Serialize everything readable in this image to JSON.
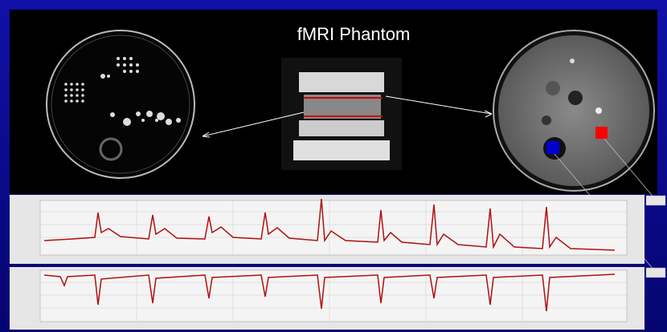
{
  "header": {
    "title": "fMRI Phantom"
  }
}
